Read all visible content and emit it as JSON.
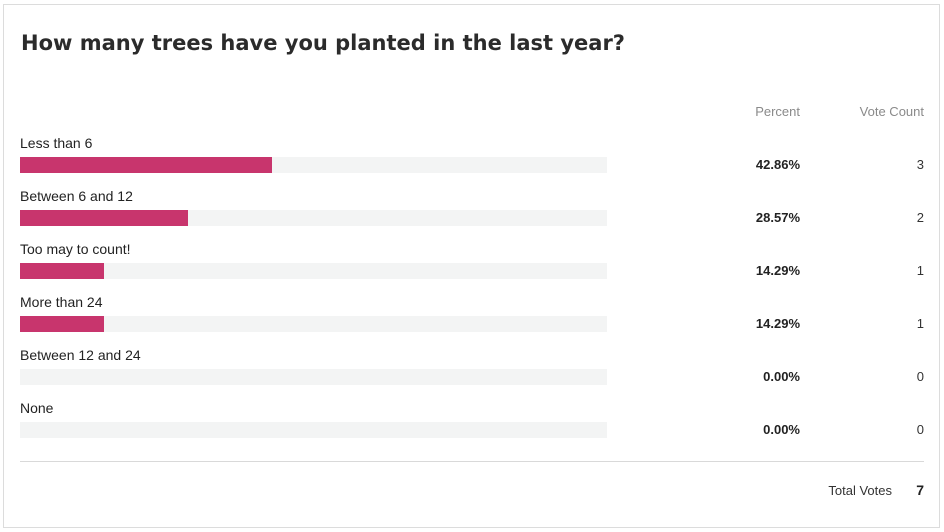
{
  "poll": {
    "question": "How many trees have you planted in the last year?",
    "columns": {
      "percent": "Percent",
      "vote_count": "Vote Count"
    },
    "bar_color": "#c8356d",
    "track_color": "#f3f4f4",
    "options": [
      {
        "label": "Less than 6",
        "percent": "42.86%",
        "fraction": 0.4286,
        "votes": "3"
      },
      {
        "label": "Between 6 and 12",
        "percent": "28.57%",
        "fraction": 0.2857,
        "votes": "2"
      },
      {
        "label": "Too may to count!",
        "percent": "14.29%",
        "fraction": 0.1429,
        "votes": "1"
      },
      {
        "label": "More than 24",
        "percent": "14.29%",
        "fraction": 0.1429,
        "votes": "1"
      },
      {
        "label": "Between 12 and 24",
        "percent": "0.00%",
        "fraction": 0,
        "votes": "0"
      },
      {
        "label": "None",
        "percent": "0.00%",
        "fraction": 0,
        "votes": "0"
      }
    ],
    "total_label": "Total Votes",
    "total_votes": "7"
  }
}
